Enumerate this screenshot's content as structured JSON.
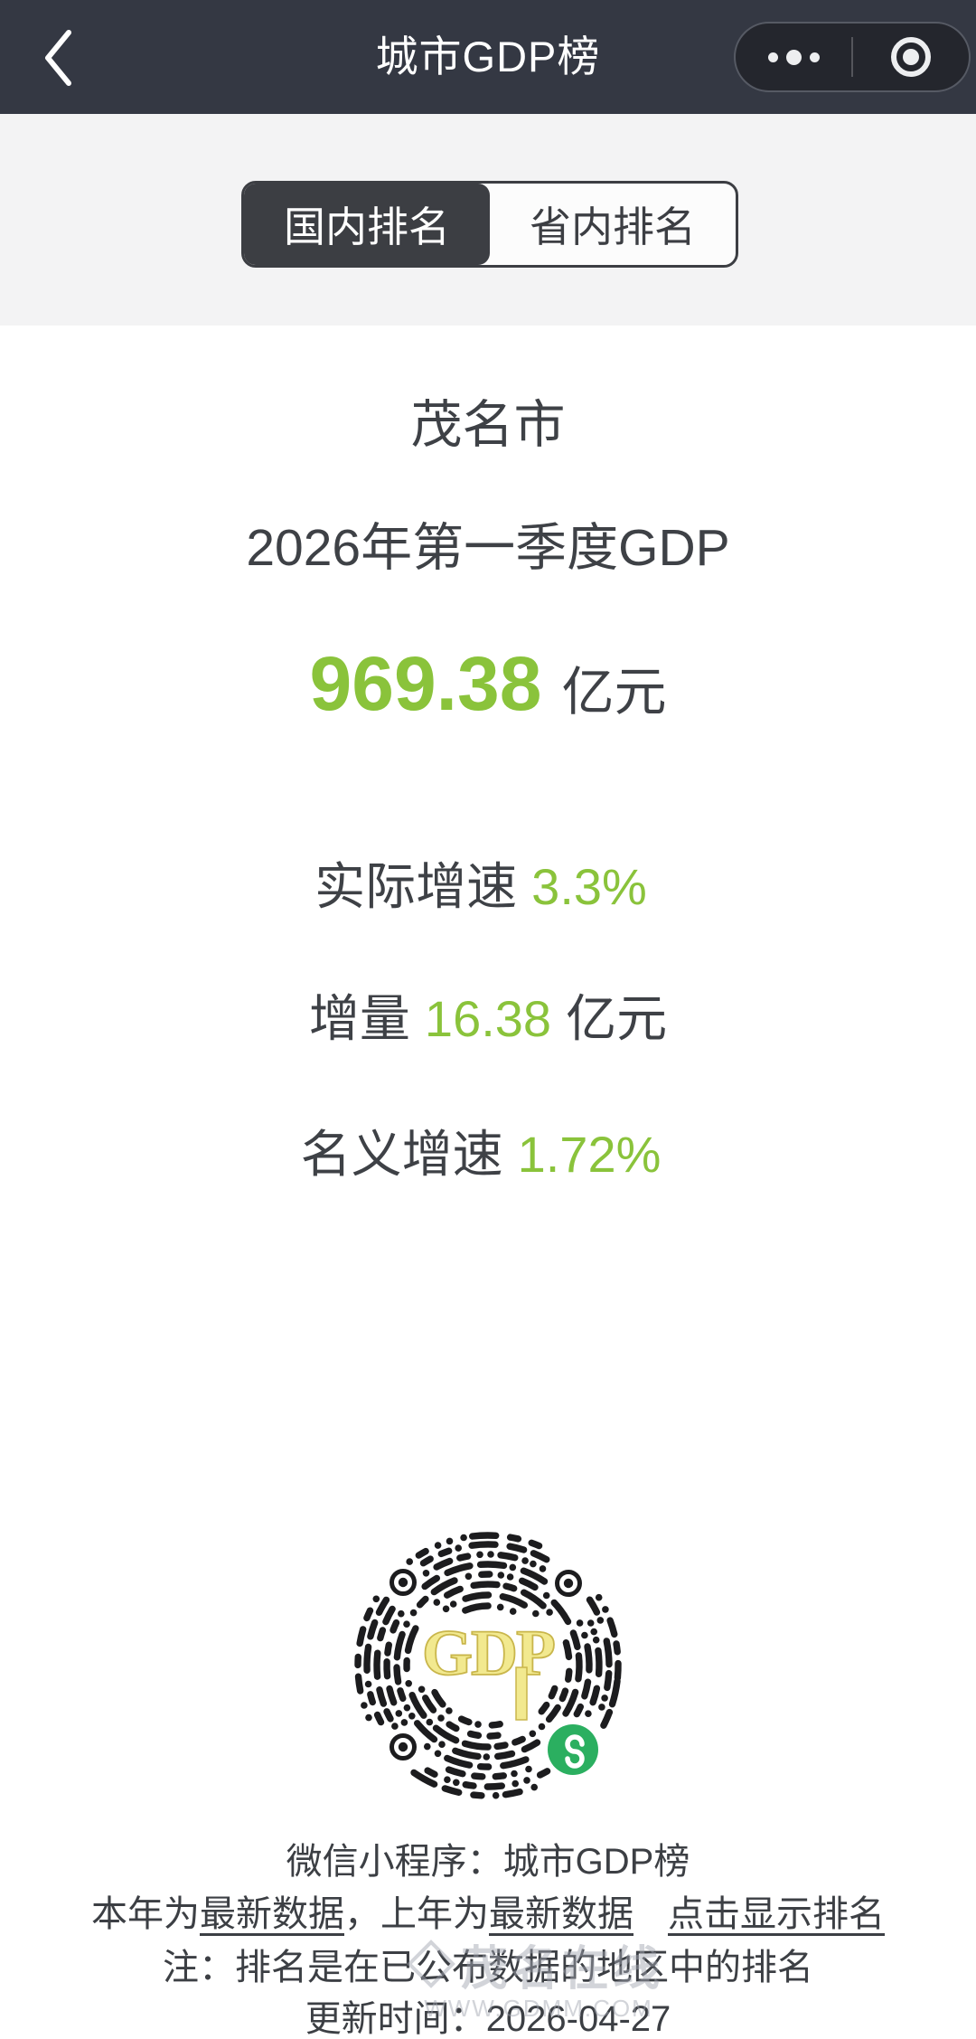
{
  "nav": {
    "title": "城市GDP榜"
  },
  "tabs": {
    "domestic": "国内排名",
    "provincial": "省内排名"
  },
  "main": {
    "city": "茂名市",
    "period": "2026年第一季度GDP",
    "gdp": {
      "value": "969.38",
      "unit": "亿元"
    },
    "stats": [
      {
        "label": "实际增速",
        "value": "3.3%",
        "unit": ""
      },
      {
        "label": "增量",
        "value": "16.38",
        "unit": "亿元"
      },
      {
        "label": "名义增速",
        "value": "1.72%",
        "unit": ""
      }
    ]
  },
  "qr": {
    "label": "GDP"
  },
  "footer": {
    "line1": "微信小程序：城市GDP榜",
    "line2": [
      {
        "text": "本年为"
      },
      {
        "text": "最新数据"
      },
      {
        "text": "，"
      },
      {
        "text": "上年为"
      },
      {
        "text": "最新数据"
      },
      {
        "text": "点击显示排名"
      }
    ],
    "line3": "注：排名是在已公布数据的地区中的排名",
    "updated_label": "更新时间：",
    "updated_value": "2026-04-27"
  },
  "watermark": {
    "name": "茂名在线",
    "url": "WWW.GDMM.COM"
  },
  "colors": {
    "accent_green": "#8AC33B",
    "nav_bg": "#343843",
    "dark_text": "#3C3E43",
    "strip_bg": "#F3F3F4",
    "qr_gold": "#F2E98F",
    "wechat_green": "#2BAF60"
  }
}
